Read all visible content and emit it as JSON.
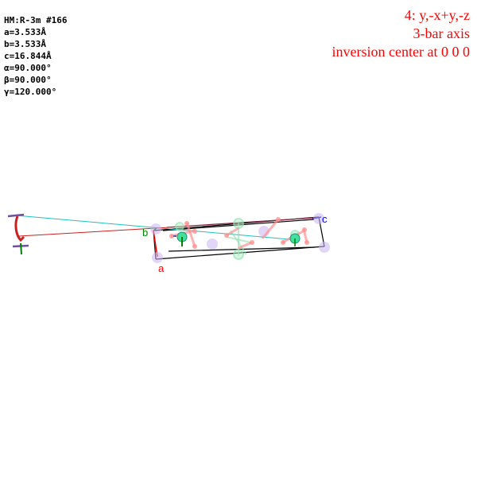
{
  "cell": {
    "space_group": "HM:R-3m #166",
    "a": "a=3.533Å",
    "b": "b=3.533Å",
    "c": "c=16.844Å",
    "alpha": "α=90.000°",
    "beta": "β=90.000°",
    "gamma": "γ=120.000°"
  },
  "symmetry": {
    "operation": "4: y,-x+y,-z",
    "element": "3-bar axis",
    "description": "inversion center at 0 0 0"
  },
  "axes": {
    "a_label": "a",
    "b_label": "b",
    "c_label": "c",
    "a_color": "#ff0000",
    "b_color": "#008000",
    "c_color": "#0000ff"
  },
  "colors": {
    "text_info": "#000000",
    "text_symop": "#ff0000",
    "metal_atom": "#40e0a0",
    "small_atom": "#ff9090",
    "ghost_atom": "#c8b4f0",
    "axis_line": "#20c0c0",
    "rotation_arrow": "#cc2020"
  }
}
